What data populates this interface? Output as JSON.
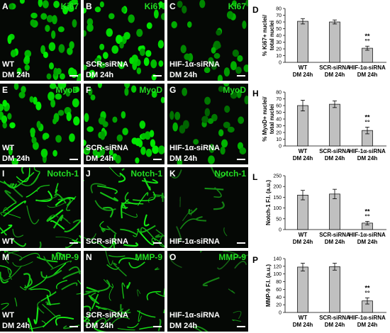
{
  "panels": [
    {
      "letter": "A",
      "marker": "Ki67",
      "condition": "WT",
      "treatment": "DM 24h"
    },
    {
      "letter": "B",
      "marker": "Ki67",
      "condition": "SCR-siRNA",
      "treatment": "DM 24h"
    },
    {
      "letter": "C",
      "marker": "Ki67",
      "condition": "HIF-1α-siRNA",
      "treatment": "DM 24h"
    },
    {
      "letter": "E",
      "marker": "MyoD",
      "condition": "WT",
      "treatment": "DM 24h"
    },
    {
      "letter": "F",
      "marker": "MyoD",
      "condition": "SCR-siRNA",
      "treatment": "DM 24h"
    },
    {
      "letter": "G",
      "marker": "MyoD",
      "condition": "HIF-1α-siRNA",
      "treatment": "DM 24h"
    },
    {
      "letter": "I",
      "marker": "Notch-1",
      "condition": "WT"
    },
    {
      "letter": "J",
      "marker": "Notch-1",
      "condition": "SCR-siRNA"
    },
    {
      "letter": "K",
      "marker": "Notch-1",
      "condition": "HIF-1α-siRNA"
    },
    {
      "letter": "M",
      "marker": "MMP-9",
      "condition": "WT",
      "treatment": "DM 24h"
    },
    {
      "letter": "N",
      "marker": "MMP-9",
      "condition": "SCR-siRNA",
      "treatment": "DM 24h"
    },
    {
      "letter": "O",
      "marker": "MMP-9",
      "condition": "HIF-1α-siRNA",
      "treatment": "DM 24h"
    }
  ],
  "chart_data": [
    {
      "type": "bar",
      "letter": "D",
      "y_label": [
        "% Ki67+ nuclei/",
        "total nuclei"
      ],
      "categories": [
        [
          "WT",
          "DM 24h"
        ],
        [
          "SCR-siRNA",
          "DM 24h"
        ],
        [
          "HIF-1α-siRNA",
          "DM 24h"
        ]
      ],
      "values": [
        61,
        60,
        21
      ],
      "errors": [
        4,
        3,
        3
      ],
      "color": "#c0c0c0",
      "ylim": [
        0,
        80
      ],
      "yticks": [
        0,
        10,
        20,
        30,
        40,
        50,
        60,
        70,
        80
      ],
      "annotation": [
        "**",
        "°°"
      ]
    },
    {
      "type": "bar",
      "letter": "H",
      "y_label": [
        "% MyoD+ nuclei/",
        "total nuclei"
      ],
      "categories": [
        [
          "WT",
          "DM 24h"
        ],
        [
          "SCR-siRNA",
          "DM 24h"
        ],
        [
          "HIF-1α-siRNA",
          "DM 24h"
        ]
      ],
      "values": [
        60,
        62,
        23
      ],
      "errors": [
        8,
        5,
        5
      ],
      "color": "#c0c0c0",
      "ylim": [
        0,
        80
      ],
      "yticks": [
        0,
        10,
        20,
        30,
        40,
        50,
        60,
        70,
        80
      ],
      "annotation": [
        "**",
        "°°"
      ]
    },
    {
      "type": "bar",
      "letter": "L",
      "y_label": [
        "Notch-1 F.I. (a.u.)"
      ],
      "categories": [
        [
          "WT",
          "DM 24h"
        ],
        [
          "SCR-siRNA",
          "DM 24h"
        ],
        [
          "HIF-1α-siRNA",
          "DM 24h"
        ]
      ],
      "values": [
        160,
        165,
        30
      ],
      "errors": [
        22,
        22,
        8
      ],
      "color": "#c0c0c0",
      "ylim": [
        0,
        250
      ],
      "yticks": [
        0,
        50,
        100,
        150,
        200,
        250
      ],
      "annotation": [
        "**",
        "°°"
      ]
    },
    {
      "type": "bar",
      "letter": "P",
      "y_label": [
        "MMP-9 F.I. (a.u.)"
      ],
      "categories": [
        [
          "WT",
          "DM 24h"
        ],
        [
          "SCR-siRNA",
          "DM 24h"
        ],
        [
          "HIF-1α-siRNA",
          "DM 24h"
        ]
      ],
      "values": [
        118,
        119,
        30
      ],
      "errors": [
        10,
        9,
        8
      ],
      "color": "#c0c0c0",
      "ylim": [
        0,
        140
      ],
      "yticks": [
        0,
        20,
        40,
        60,
        80,
        100,
        120,
        140
      ],
      "annotation": [
        "**",
        "°°"
      ]
    }
  ]
}
